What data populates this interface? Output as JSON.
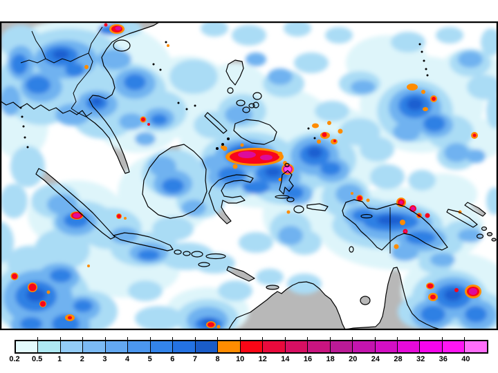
{
  "legend": {
    "tick_labels": [
      "0.2",
      "0.5",
      "1",
      "2",
      "3",
      "4",
      "5",
      "6",
      "7",
      "8",
      "10",
      "12",
      "14",
      "16",
      "18",
      "20",
      "24",
      "28",
      "32",
      "36",
      "40"
    ],
    "segment_colors": [
      "#e4fbfd",
      "#aee9f3",
      "#93ccf7",
      "#7bbaf4",
      "#63a8f1",
      "#4b96ee",
      "#3384ea",
      "#2472e2",
      "#1a5cc8",
      "#ff8c00",
      "#fb0616",
      "#e90a3c",
      "#d80f62",
      "#c91480",
      "#bb1a96",
      "#c414ae",
      "#d40fc4",
      "#e60ada",
      "#f605ec",
      "#ff16f3",
      "#ff6ef9"
    ]
  },
  "theme": {
    "background": "#ffffff",
    "ocean": "#ffffff",
    "land": "#b8b8b8",
    "coastline": "#000000",
    "frame": "#000000",
    "label_color": "#000000",
    "precip_pale": "#def5fa",
    "precip_light": "#aadcf5",
    "precip_medium": "#6fb2f0",
    "precip_strong": "#2f80e4",
    "precip_intense": "#1b5ed0",
    "rain_heavy_orange": "#ff8c00",
    "rain_severe_red": "#f8051c",
    "rain_extreme_magenta": "#dc0c9c",
    "rain_extreme_pink": "#ff4cec"
  }
}
